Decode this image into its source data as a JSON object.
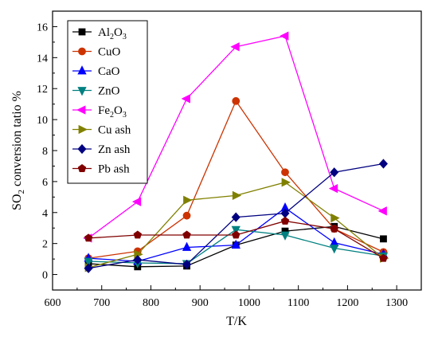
{
  "chart_data": {
    "type": "line",
    "xlabel": "T/K",
    "ylabel_main": "SO",
    "ylabel_sub": "2",
    "ylabel_rest": " conversion tatio %",
    "xlim": [
      600,
      1350
    ],
    "ylim": [
      -1,
      17
    ],
    "xticks": [
      600,
      700,
      800,
      900,
      1000,
      1100,
      1200,
      1300
    ],
    "yticks": [
      0,
      2,
      4,
      6,
      8,
      10,
      12,
      14,
      16
    ],
    "x": [
      673,
      773,
      873,
      973,
      1073,
      1173,
      1273
    ],
    "grid": false,
    "legend_position": "top-left",
    "series": [
      {
        "name_main": "Al",
        "name_parts": [
          [
            "Al",
            "n"
          ],
          [
            "2",
            "s"
          ],
          [
            "O",
            "n"
          ],
          [
            "3",
            "s"
          ]
        ],
        "color": "#000000",
        "marker": "square",
        "values": [
          0.7,
          0.5,
          0.55,
          1.9,
          2.8,
          3.1,
          2.3
        ]
      },
      {
        "name_parts": [
          [
            "CuO",
            "n"
          ]
        ],
        "color": "#cc3300",
        "marker": "circle",
        "values": [
          1.05,
          1.5,
          3.8,
          11.2,
          6.6,
          2.95,
          1.45
        ]
      },
      {
        "name_parts": [
          [
            "CaO",
            "n"
          ]
        ],
        "color": "#0000ff",
        "marker": "triangle-up",
        "values": [
          1.05,
          0.85,
          1.75,
          1.9,
          4.3,
          2.05,
          1.3
        ]
      },
      {
        "name_parts": [
          [
            "ZnO",
            "n"
          ]
        ],
        "color": "#008080",
        "marker": "triangle-down",
        "values": [
          0.85,
          0.75,
          0.7,
          2.9,
          2.55,
          1.7,
          1.2
        ]
      },
      {
        "name_parts": [
          [
            "Fe",
            "n"
          ],
          [
            "2",
            "s"
          ],
          [
            "O",
            "n"
          ],
          [
            "3",
            "s"
          ]
        ],
        "color": "#ff00ff",
        "marker": "triangle-left",
        "values": [
          2.35,
          4.7,
          11.35,
          14.7,
          15.4,
          5.55,
          4.1
        ]
      },
      {
        "name_parts": [
          [
            "Cu ash",
            "n"
          ]
        ],
        "color": "#808000",
        "marker": "triangle-right",
        "values": [
          0.45,
          1.3,
          4.8,
          5.1,
          5.95,
          3.65,
          1.05
        ]
      },
      {
        "name_parts": [
          [
            "Zn ash",
            "n"
          ]
        ],
        "color": "#000080",
        "marker": "diamond",
        "values": [
          0.4,
          0.95,
          0.65,
          3.7,
          3.95,
          6.6,
          7.15
        ]
      },
      {
        "name_parts": [
          [
            "Pb ash",
            "n"
          ]
        ],
        "color": "#800000",
        "marker": "pentagon",
        "values": [
          2.35,
          2.55,
          2.55,
          2.55,
          3.45,
          2.95,
          1.05
        ]
      }
    ]
  }
}
